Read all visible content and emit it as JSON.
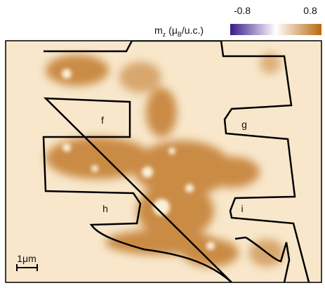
{
  "colorbar": {
    "label": [
      "m",
      "z",
      "(μ",
      "B",
      "/u.c.)"
    ],
    "min": -0.8,
    "max": 0.8,
    "colors": [
      "#3a1a8a",
      "#ffffff",
      "#b8680e"
    ]
  },
  "regions": [
    "f",
    "g",
    "h",
    "i"
  ],
  "scale_bar": {
    "label": "1μm"
  }
}
